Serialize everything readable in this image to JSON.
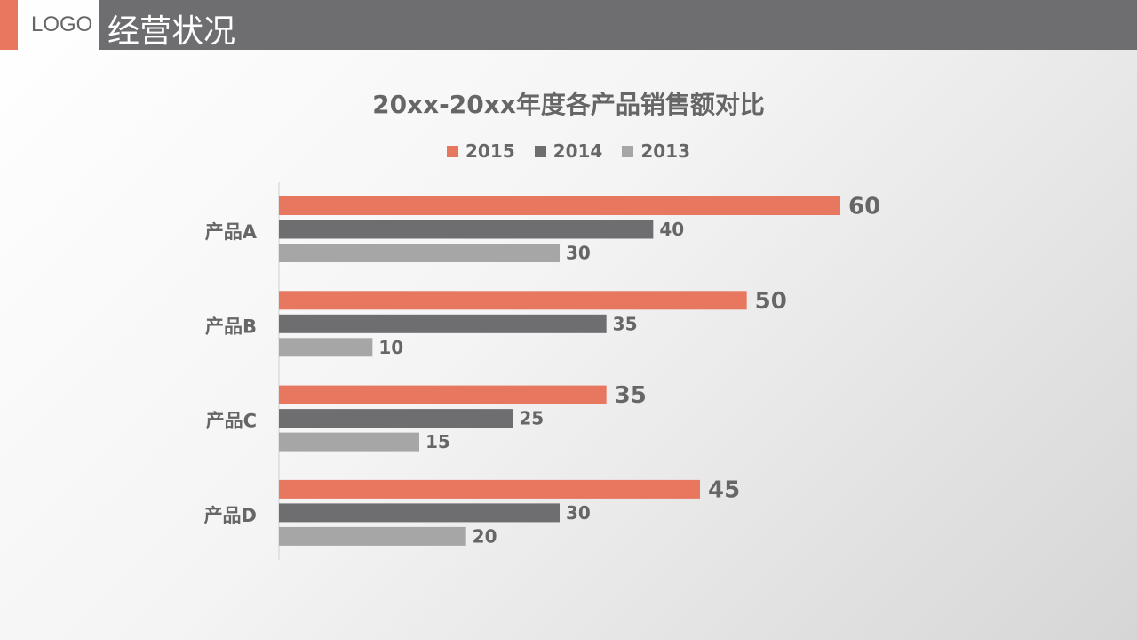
{
  "header": {
    "logo": "LOGO",
    "title": "经营状况"
  },
  "colors": {
    "2015": "#e8775f",
    "2014": "#6e6d70",
    "2013": "#a6a6a6",
    "accent": "#e8775f"
  },
  "chart_data": {
    "type": "bar",
    "orientation": "horizontal",
    "title": "20xx-20xx年度各产品销售额对比",
    "categories": [
      "产品A",
      "产品B",
      "产品C",
      "产品D"
    ],
    "series": [
      {
        "name": "2015",
        "values": [
          60,
          50,
          35,
          45
        ]
      },
      {
        "name": "2014",
        "values": [
          40,
          35,
          25,
          30
        ]
      },
      {
        "name": "2013",
        "values": [
          30,
          10,
          15,
          20
        ]
      }
    ],
    "legend": "top",
    "grid": false,
    "xlim": [
      0,
      60
    ]
  }
}
